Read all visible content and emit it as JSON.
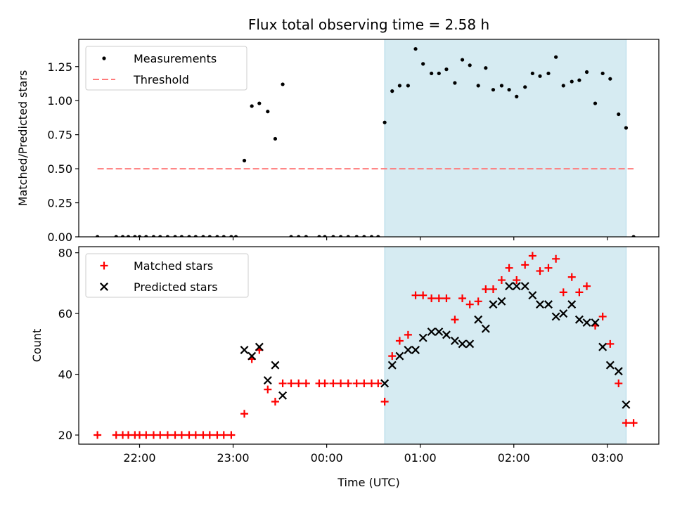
{
  "chart_data": [
    {
      "type": "scatter",
      "title": "Flux total observing time = 2.58 h",
      "xlabel": "",
      "ylabel": "Matched/Predicted stars",
      "ylim": [
        0,
        1.45
      ],
      "yticks": [
        0.0,
        0.25,
        0.5,
        0.75,
        1.0,
        1.25
      ],
      "ytick_labels": [
        "0.00",
        "0.25",
        "0.50",
        "0.75",
        "1.00",
        "1.25"
      ],
      "xlim": [
        21.35,
        27.55
      ],
      "x_unit": "hours since 00:00 of the first night",
      "highlight_span": [
        24.62,
        27.2
      ],
      "legend": "top-left",
      "series": [
        {
          "name": "Measurements",
          "marker": "dot",
          "color": "#000000",
          "x": [
            21.55,
            21.75,
            21.82,
            21.88,
            21.95,
            22.0,
            22.07,
            22.15,
            22.22,
            22.3,
            22.38,
            22.45,
            22.53,
            22.6,
            22.68,
            22.75,
            22.83,
            22.9,
            22.98,
            23.03,
            23.12,
            23.2,
            23.28,
            23.37,
            23.45,
            23.53,
            23.62,
            23.7,
            23.78,
            23.92,
            23.98,
            24.07,
            24.15,
            24.23,
            24.32,
            24.4,
            24.48,
            24.55,
            24.62,
            24.7,
            24.78,
            24.87,
            24.95,
            25.03,
            25.12,
            25.2,
            25.28,
            25.37,
            25.45,
            25.53,
            25.62,
            25.7,
            25.78,
            25.87,
            25.95,
            26.03,
            26.12,
            26.2,
            26.28,
            26.37,
            26.45,
            26.53,
            26.62,
            26.7,
            26.78,
            26.87,
            26.95,
            27.03,
            27.12,
            27.2,
            27.28
          ],
          "y": [
            0.0,
            0.0,
            0.0,
            0.0,
            0.0,
            0.0,
            0.0,
            0.0,
            0.0,
            0.0,
            0.0,
            0.0,
            0.0,
            0.0,
            0.0,
            0.0,
            0.0,
            0.0,
            0.0,
            0.0,
            0.56,
            0.96,
            0.98,
            0.92,
            0.72,
            1.12,
            0.0,
            0.0,
            0.0,
            0.0,
            0.0,
            0.0,
            0.0,
            0.0,
            0.0,
            0.0,
            0.0,
            0.0,
            0.84,
            1.07,
            1.11,
            1.11,
            1.38,
            1.27,
            1.2,
            1.2,
            1.23,
            1.13,
            1.3,
            1.26,
            1.11,
            1.24,
            1.08,
            1.11,
            1.08,
            1.03,
            1.1,
            1.2,
            1.18,
            1.2,
            1.32,
            1.11,
            1.14,
            1.15,
            1.21,
            0.98,
            1.2,
            1.16,
            0.9,
            0.8,
            0.0
          ]
        },
        {
          "name": "Threshold",
          "marker": "dashed-line",
          "color": "#ff7b7b",
          "x": [
            21.55,
            27.28
          ],
          "y": [
            0.5,
            0.5
          ]
        }
      ]
    },
    {
      "type": "scatter",
      "title": "",
      "xlabel": "Time (UTC)",
      "ylabel": "Count",
      "ylim": [
        17,
        82
      ],
      "yticks": [
        20,
        40,
        60,
        80
      ],
      "ytick_labels": [
        "20",
        "40",
        "60",
        "80"
      ],
      "xlim": [
        21.35,
        27.55
      ],
      "xticks": [
        22,
        23,
        24,
        25,
        26,
        27
      ],
      "xtick_labels": [
        "22:00",
        "23:00",
        "00:00",
        "01:00",
        "02:00",
        "03:00"
      ],
      "x_unit": "hours since 00:00 of the first night",
      "highlight_span": [
        24.62,
        27.2
      ],
      "legend": "top-left",
      "series": [
        {
          "name": "Matched stars",
          "marker": "plus",
          "color": "#ff0000",
          "x": [
            21.55,
            21.75,
            21.82,
            21.88,
            21.95,
            22.0,
            22.07,
            22.15,
            22.22,
            22.3,
            22.38,
            22.45,
            22.53,
            22.6,
            22.68,
            22.75,
            22.83,
            22.9,
            22.98,
            23.12,
            23.2,
            23.28,
            23.37,
            23.45,
            23.53,
            23.62,
            23.7,
            23.78,
            23.92,
            23.98,
            24.07,
            24.15,
            24.23,
            24.32,
            24.4,
            24.48,
            24.55,
            24.62,
            24.7,
            24.78,
            24.87,
            24.95,
            25.03,
            25.12,
            25.2,
            25.28,
            25.37,
            25.45,
            25.53,
            25.62,
            25.7,
            25.78,
            25.87,
            25.95,
            26.03,
            26.12,
            26.2,
            26.28,
            26.37,
            26.45,
            26.53,
            26.62,
            26.7,
            26.78,
            26.87,
            26.95,
            27.03,
            27.12,
            27.2,
            27.28
          ],
          "y": [
            20,
            20,
            20,
            20,
            20,
            20,
            20,
            20,
            20,
            20,
            20,
            20,
            20,
            20,
            20,
            20,
            20,
            20,
            20,
            27,
            45,
            48,
            35,
            31,
            37,
            37,
            37,
            37,
            37,
            37,
            37,
            37,
            37,
            37,
            37,
            37,
            37,
            31,
            46,
            51,
            53,
            66,
            66,
            65,
            65,
            65,
            58,
            65,
            63,
            64,
            68,
            68,
            71,
            75,
            71,
            76,
            79,
            74,
            75,
            78,
            67,
            72,
            67,
            69,
            56,
            59,
            50,
            37,
            24,
            24
          ]
        },
        {
          "name": "Predicted stars",
          "marker": "x",
          "color": "#000000",
          "x": [
            23.12,
            23.2,
            23.28,
            23.37,
            23.45,
            23.53,
            24.62,
            24.7,
            24.78,
            24.87,
            24.95,
            25.03,
            25.12,
            25.2,
            25.28,
            25.37,
            25.45,
            25.53,
            25.62,
            25.7,
            25.78,
            25.87,
            25.95,
            26.03,
            26.12,
            26.2,
            26.28,
            26.37,
            26.45,
            26.53,
            26.62,
            26.7,
            26.78,
            26.87,
            26.95,
            27.03,
            27.12,
            27.2
          ],
          "y": [
            48,
            46,
            49,
            38,
            43,
            33,
            37,
            43,
            46,
            48,
            48,
            52,
            54,
            54,
            53,
            51,
            50,
            50,
            58,
            55,
            63,
            64,
            69,
            69,
            69,
            66,
            63,
            63,
            59,
            60,
            63,
            58,
            57,
            57,
            49,
            43,
            41,
            30
          ]
        }
      ]
    }
  ]
}
